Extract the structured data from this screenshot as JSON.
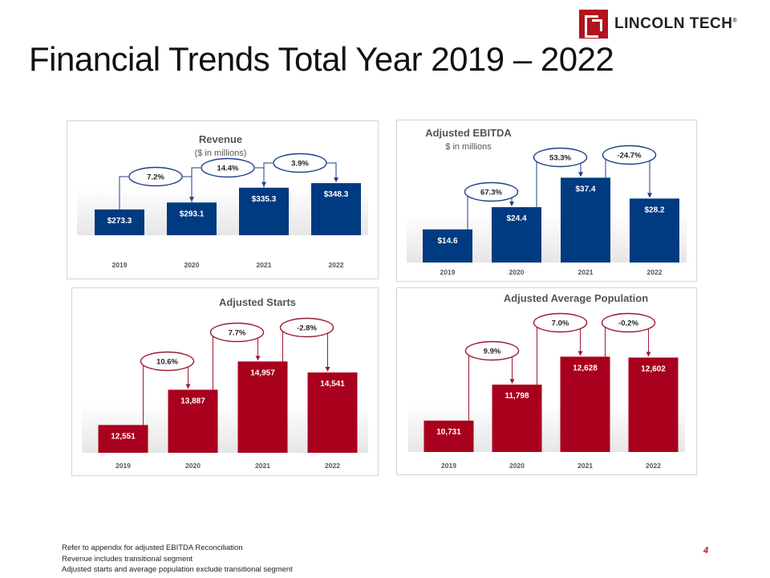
{
  "header": {
    "logo_text": "LINCOLN TECH",
    "logo_reg": "®"
  },
  "title": "Financial Trends Total Year 2019 – 2022",
  "colors": {
    "blue": "#003a80",
    "red": "#a8001d",
    "bubble_blue": "#1f3f8a",
    "bubble_red": "#9a1b2f"
  },
  "chart_data": [
    {
      "type": "bar",
      "title": "Revenue",
      "subtitle": "($ in millions)",
      "categories": [
        "2019",
        "2020",
        "2021",
        "2022"
      ],
      "values": [
        273.3,
        293.1,
        335.3,
        348.3
      ],
      "value_labels": [
        "$273.3",
        "$293.1",
        "$335.3",
        "$348.3"
      ],
      "growth_labels": [
        "7.2%",
        "14.4%",
        "3.9%"
      ],
      "color": "blue",
      "ylim": [
        200,
        360
      ]
    },
    {
      "type": "bar",
      "title": "Adjusted EBITDA",
      "subtitle": "$ in millions",
      "categories": [
        "2019",
        "2020",
        "2021",
        "2022"
      ],
      "values": [
        14.6,
        24.4,
        37.4,
        28.2
      ],
      "value_labels": [
        "$14.6",
        "$24.4",
        "$37.4",
        "$28.2"
      ],
      "growth_labels": [
        "67.3%",
        "53.3%",
        "-24.7%"
      ],
      "color": "blue",
      "ylim": [
        0,
        40
      ]
    },
    {
      "type": "bar",
      "title": "Adjusted Starts",
      "subtitle": "",
      "categories": [
        "2019",
        "2020",
        "2021",
        "2022"
      ],
      "values": [
        12551,
        13887,
        14957,
        14541
      ],
      "value_labels": [
        "12,551",
        "13,887",
        "14,957",
        "14,541"
      ],
      "growth_labels": [
        "10.6%",
        "7.7%",
        "-2.8%"
      ],
      "color": "red",
      "ylim": [
        11500,
        15300
      ]
    },
    {
      "type": "bar",
      "title": "Adjusted Average Population",
      "subtitle": "",
      "categories": [
        "2019",
        "2020",
        "2021",
        "2022"
      ],
      "values": [
        10731,
        11798,
        12628,
        12602
      ],
      "value_labels": [
        "10,731",
        "11,798",
        "12,628",
        "12,602"
      ],
      "growth_labels": [
        "9.9%",
        "7.0%",
        "-0.2%"
      ],
      "color": "red",
      "ylim": [
        9800,
        12850
      ]
    }
  ],
  "footnotes": [
    "Refer to appendix for adjusted EBITDA Reconciliation",
    "Revenue includes transitional segment",
    "Adjusted starts and average population exclude transitional segment"
  ],
  "page_number": "4"
}
